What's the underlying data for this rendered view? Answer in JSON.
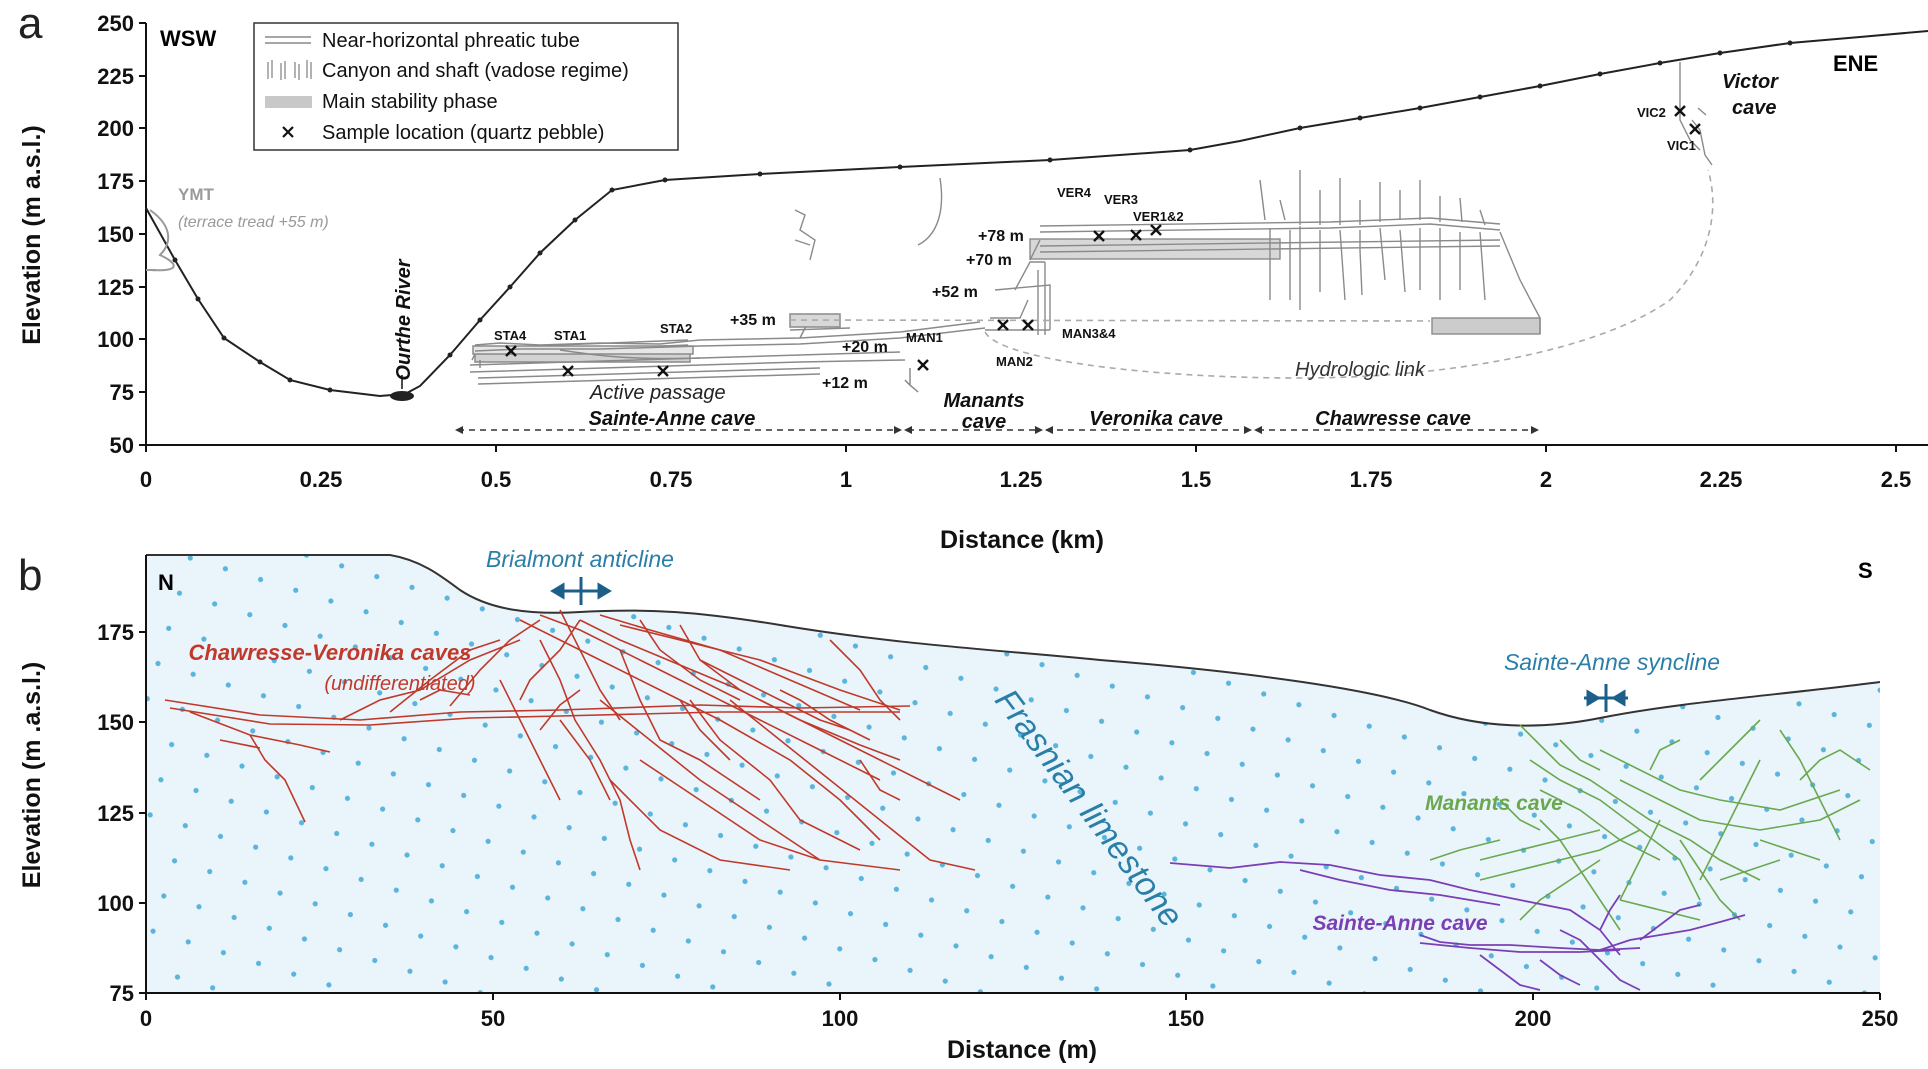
{
  "panel_a": {
    "label": "a",
    "direction_left": "WSW",
    "direction_right": "ENE",
    "ylabel": "Elevation (m a.s.l.)",
    "xlabel": "Distance (km)",
    "x_ticks": [
      "0",
      "0.25",
      "0.5",
      "0.75",
      "1",
      "1.25",
      "1.5",
      "1.75",
      "2",
      "2.25",
      "2.5"
    ],
    "y_ticks": [
      "250",
      "225",
      "200",
      "175",
      "150",
      "125",
      "100",
      "75",
      "50"
    ],
    "legend": {
      "tube": "Near-horizontal phreatic tube",
      "canyon": "Canyon and shaft (vadose regime)",
      "stability": "Main stability phase",
      "sample": "Sample location (quartz pebble)"
    },
    "ymt": "YMT",
    "ymt_note": "(terrace tread +55 m)",
    "river": "Ourthe River",
    "samples": {
      "sta4": "STA4",
      "sta1": "STA1",
      "sta2": "STA2",
      "man1": "MAN1",
      "man2": "MAN2",
      "man34": "MAN3&4",
      "ver4": "VER4",
      "ver3": "VER3",
      "ver12": "VER1&2",
      "vic2": "VIC2",
      "vic1": "VIC1"
    },
    "levels": {
      "l35": "+35 m",
      "l20": "+20 m",
      "l12": "+12 m",
      "l52": "+52 m",
      "l70": "+70 m",
      "l78": "+78 m"
    },
    "active_passage": "Active passage",
    "hydrologic_link": "Hydrologic link",
    "victor_cave": "Victor",
    "victor_cave2": "cave",
    "caves": {
      "sainte_anne": "Sainte-Anne cave",
      "manants": "Manants",
      "manants2": "cave",
      "veronika": "Veronika cave",
      "chawresse": "Chawresse cave"
    }
  },
  "panel_b": {
    "label": "b",
    "direction_left": "N",
    "direction_right": "S",
    "ylabel": "Elevation (m .a.s.l.)",
    "xlabel": "Distance (m)",
    "x_ticks": [
      "0",
      "50",
      "100",
      "150",
      "200",
      "250"
    ],
    "y_ticks": [
      "175",
      "150",
      "125",
      "100",
      "75"
    ],
    "anticline": "Brialmont anticline",
    "syncline": "Sainte-Anne syncline",
    "chawresse": "Chawresse-Veronika caves",
    "chawresse_note": "(undifferentiated)",
    "limestone": "Frasnian limestone",
    "manants": "Manants cave",
    "sainte_anne": "Sainte-Anne cave"
  },
  "colors": {
    "red_cave": "#c0392b",
    "green_cave": "#6aa84f",
    "purple_cave": "#7b3fb5",
    "blue_label": "#2a7fa8",
    "limestone_fill": "#eaf5fb",
    "dot": "#5ab4dc"
  }
}
